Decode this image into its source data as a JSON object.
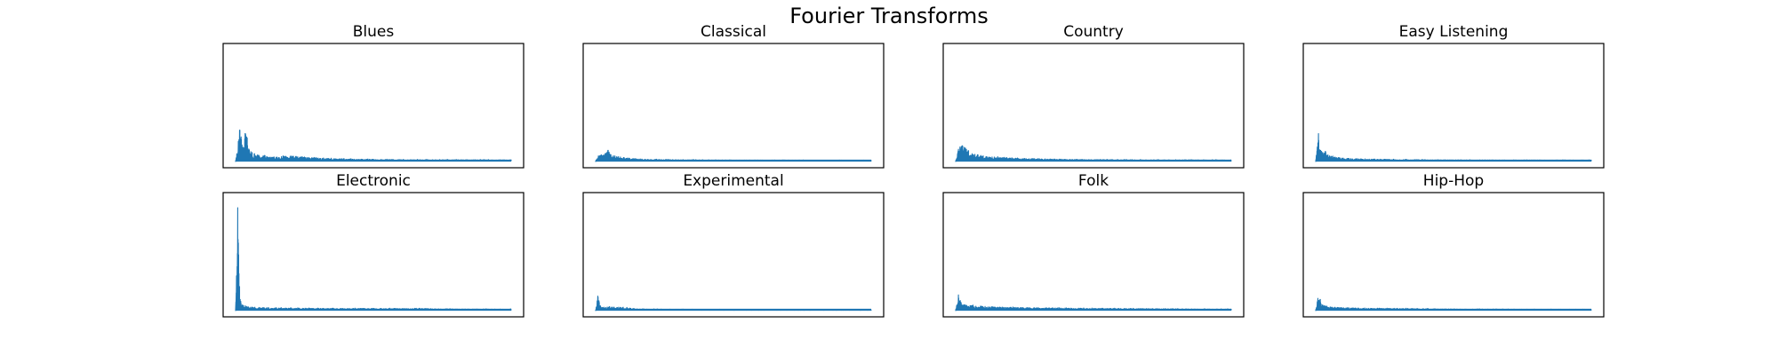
{
  "chart_data": {
    "type": "line",
    "title": "Fourier Transforms",
    "layout": "grid-2-rows-4-columns",
    "axes_visible": false,
    "ticks_visible": false,
    "grid": false,
    "legend": "none",
    "line_color": "#1f77b4",
    "panels": [
      {
        "title": "Blues",
        "ylim": [
          0,
          1
        ],
        "peaks": [
          {
            "x": 0.01,
            "y": 0.18
          },
          {
            "x": 0.015,
            "y": 0.28
          },
          {
            "x": 0.02,
            "y": 0.22
          },
          {
            "x": 0.028,
            "y": 0.12
          },
          {
            "x": 0.035,
            "y": 0.25
          },
          {
            "x": 0.042,
            "y": 0.21
          },
          {
            "x": 0.05,
            "y": 0.1
          },
          {
            "x": 0.06,
            "y": 0.08
          },
          {
            "x": 0.08,
            "y": 0.06
          },
          {
            "x": 0.1,
            "y": 0.05
          },
          {
            "x": 0.14,
            "y": 0.04
          },
          {
            "x": 0.2,
            "y": 0.05
          },
          {
            "x": 0.25,
            "y": 0.04
          },
          {
            "x": 0.3,
            "y": 0.03
          }
        ],
        "floor": 0.015
      },
      {
        "title": "Classical",
        "ylim": [
          0,
          1
        ],
        "peaks": [
          {
            "x": 0.01,
            "y": 0.05
          },
          {
            "x": 0.02,
            "y": 0.06
          },
          {
            "x": 0.035,
            "y": 0.07
          },
          {
            "x": 0.045,
            "y": 0.1
          },
          {
            "x": 0.055,
            "y": 0.06
          },
          {
            "x": 0.07,
            "y": 0.05
          },
          {
            "x": 0.09,
            "y": 0.04
          },
          {
            "x": 0.12,
            "y": 0.03
          },
          {
            "x": 0.18,
            "y": 0.02
          }
        ],
        "floor": 0.012
      },
      {
        "title": "Country",
        "ylim": [
          0,
          1
        ],
        "peaks": [
          {
            "x": 0.01,
            "y": 0.11
          },
          {
            "x": 0.016,
            "y": 0.13
          },
          {
            "x": 0.024,
            "y": 0.14
          },
          {
            "x": 0.035,
            "y": 0.12
          },
          {
            "x": 0.045,
            "y": 0.09
          },
          {
            "x": 0.06,
            "y": 0.07
          },
          {
            "x": 0.08,
            "y": 0.06
          },
          {
            "x": 0.1,
            "y": 0.05
          },
          {
            "x": 0.14,
            "y": 0.04
          },
          {
            "x": 0.2,
            "y": 0.03
          },
          {
            "x": 0.3,
            "y": 0.025
          }
        ],
        "floor": 0.014
      },
      {
        "title": "Easy Listening",
        "ylim": [
          0,
          1
        ],
        "peaks": [
          {
            "x": 0.01,
            "y": 0.25
          },
          {
            "x": 0.018,
            "y": 0.1
          },
          {
            "x": 0.026,
            "y": 0.08
          },
          {
            "x": 0.035,
            "y": 0.09
          },
          {
            "x": 0.05,
            "y": 0.05
          },
          {
            "x": 0.07,
            "y": 0.04
          },
          {
            "x": 0.1,
            "y": 0.03
          },
          {
            "x": 0.15,
            "y": 0.025
          },
          {
            "x": 0.25,
            "y": 0.02
          }
        ],
        "floor": 0.013
      },
      {
        "title": "Electronic",
        "ylim": [
          0,
          1
        ],
        "peaks": [
          {
            "x": 0.008,
            "y": 0.92
          },
          {
            "x": 0.016,
            "y": 0.1
          },
          {
            "x": 0.025,
            "y": 0.05
          },
          {
            "x": 0.04,
            "y": 0.035
          },
          {
            "x": 0.07,
            "y": 0.03
          },
          {
            "x": 0.12,
            "y": 0.025
          },
          {
            "x": 0.3,
            "y": 0.02
          },
          {
            "x": 0.5,
            "y": 0.02
          },
          {
            "x": 0.7,
            "y": 0.018
          }
        ],
        "floor": 0.012
      },
      {
        "title": "Experimental",
        "ylim": [
          0,
          1
        ],
        "peaks": [
          {
            "x": 0.008,
            "y": 0.13
          },
          {
            "x": 0.018,
            "y": 0.04
          },
          {
            "x": 0.03,
            "y": 0.03
          },
          {
            "x": 0.05,
            "y": 0.035
          },
          {
            "x": 0.1,
            "y": 0.03
          },
          {
            "x": 0.15,
            "y": 0.015
          },
          {
            "x": 0.3,
            "y": 0.012
          }
        ],
        "floor": 0.01
      },
      {
        "title": "Folk",
        "ylim": [
          0,
          1
        ],
        "peaks": [
          {
            "x": 0.01,
            "y": 0.14
          },
          {
            "x": 0.02,
            "y": 0.07
          },
          {
            "x": 0.035,
            "y": 0.05
          },
          {
            "x": 0.06,
            "y": 0.045
          },
          {
            "x": 0.09,
            "y": 0.04
          },
          {
            "x": 0.13,
            "y": 0.035
          },
          {
            "x": 0.2,
            "y": 0.03
          },
          {
            "x": 0.3,
            "y": 0.025
          },
          {
            "x": 0.5,
            "y": 0.02
          },
          {
            "x": 0.7,
            "y": 0.018
          }
        ],
        "floor": 0.013
      },
      {
        "title": "Hip-Hop",
        "ylim": [
          0,
          1
        ],
        "peaks": [
          {
            "x": 0.008,
            "y": 0.11
          },
          {
            "x": 0.016,
            "y": 0.1
          },
          {
            "x": 0.025,
            "y": 0.05
          },
          {
            "x": 0.04,
            "y": 0.04
          },
          {
            "x": 0.07,
            "y": 0.03
          },
          {
            "x": 0.12,
            "y": 0.025
          },
          {
            "x": 0.2,
            "y": 0.02
          },
          {
            "x": 0.35,
            "y": 0.018
          }
        ],
        "floor": 0.012
      }
    ]
  }
}
